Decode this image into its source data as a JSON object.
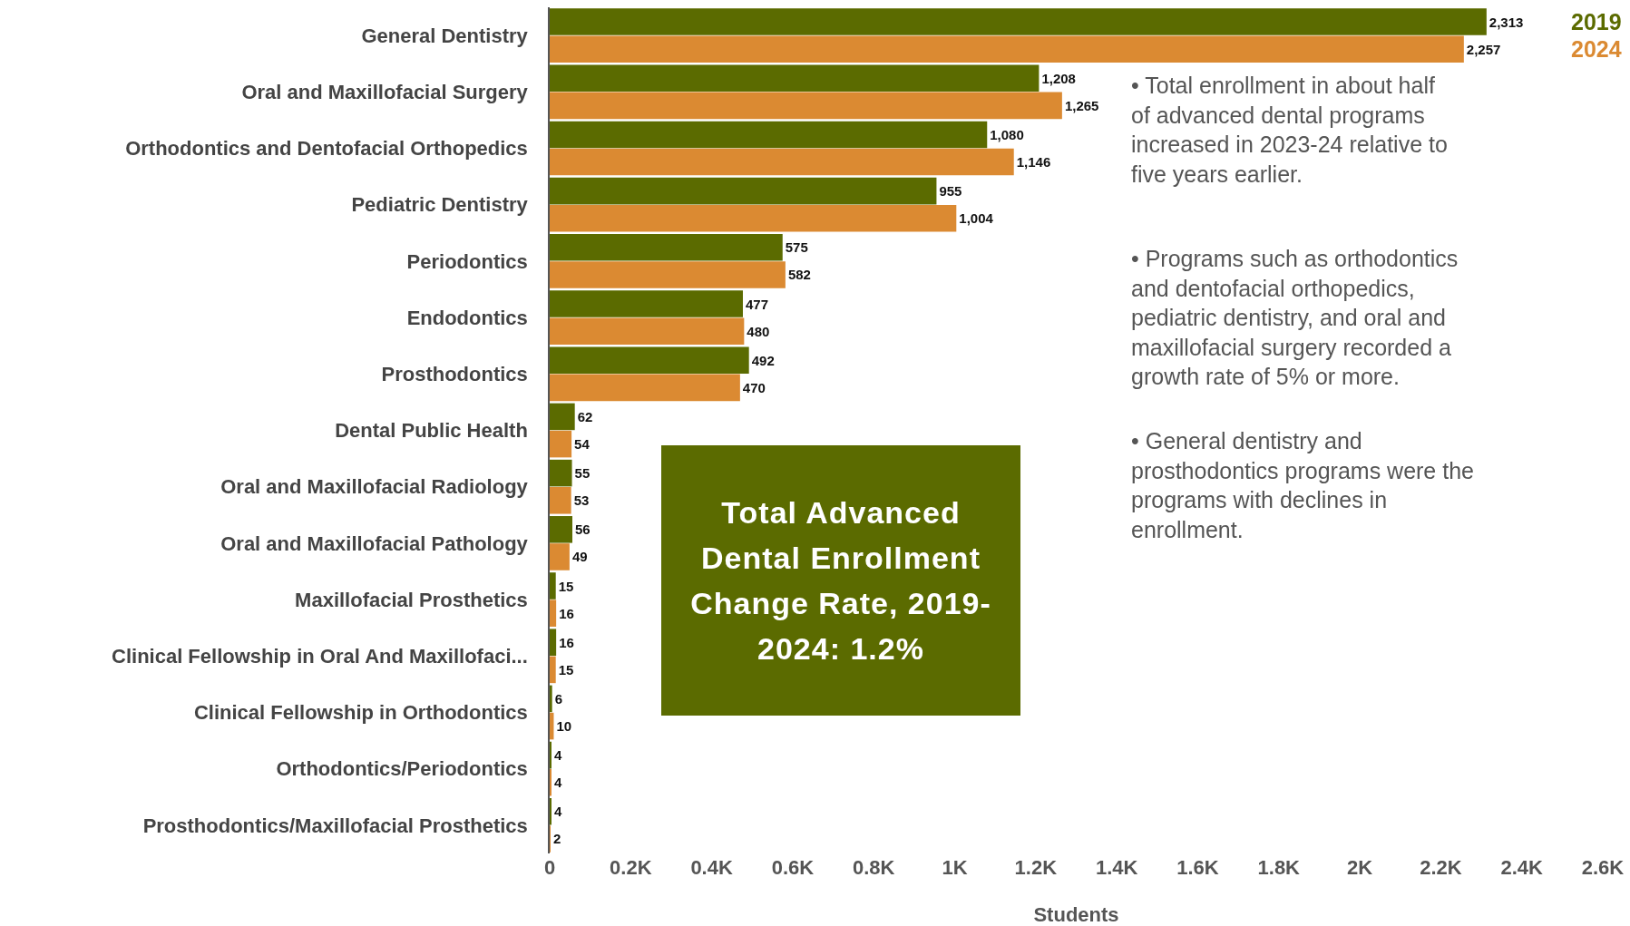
{
  "chart_data": {
    "type": "bar",
    "orientation": "horizontal",
    "xlabel": "Students",
    "categories": [
      "General Dentistry",
      "Oral and Maxillofacial Surgery",
      "Orthodontics and Dentofacial Orthopedics",
      "Pediatric Dentistry",
      "Periodontics",
      "Endodontics",
      "Prosthodontics",
      "Dental Public Health",
      "Oral and Maxillofacial Radiology",
      "Oral and Maxillofacial Pathology",
      "Maxillofacial Prosthetics",
      "Clinical Fellowship in Oral And Maxillofaci...",
      "Clinical Fellowship in Orthodontics",
      "Orthodontics/Periodontics",
      "Prosthodontics/Maxillofacial Prosthetics"
    ],
    "series": [
      {
        "name": "2019",
        "color": "#5b6b00",
        "values": [
          2313,
          1208,
          1080,
          955,
          575,
          477,
          492,
          62,
          55,
          56,
          15,
          16,
          6,
          4,
          4
        ],
        "value_labels": [
          "2,313",
          "1,208",
          "1,080",
          "955",
          "575",
          "477",
          "492",
          "62",
          "55",
          "56",
          "15",
          "16",
          "6",
          "4",
          "4"
        ]
      },
      {
        "name": "2024",
        "color": "#db8a32",
        "values": [
          2257,
          1265,
          1146,
          1004,
          582,
          480,
          470,
          54,
          53,
          49,
          16,
          15,
          10,
          4,
          2
        ],
        "value_labels": [
          "2,257",
          "1,265",
          "1,146",
          "1,004",
          "582",
          "480",
          "470",
          "54",
          "53",
          "49",
          "16",
          "15",
          "10",
          "4",
          "2"
        ]
      }
    ],
    "xlim": [
      0,
      2600
    ],
    "xticks": [
      0,
      {
        "value": 200,
        "label": "0.2K"
      },
      {
        "value": 400,
        "label": "0.4K"
      },
      {
        "value": 600,
        "label": "0.6K"
      },
      {
        "value": 800,
        "label": "0.8K"
      },
      {
        "value": 1000,
        "label": "1K"
      },
      {
        "value": 1200,
        "label": "1.2K"
      },
      {
        "value": 1400,
        "label": "1.4K"
      },
      {
        "value": 1600,
        "label": "1.6K"
      },
      {
        "value": 1800,
        "label": "1.8K"
      },
      {
        "value": 2000,
        "label": "2K"
      },
      {
        "value": 2200,
        "label": "2.2K"
      },
      {
        "value": 2400,
        "label": "2.4K"
      },
      {
        "value": 2600,
        "label": "2.6K"
      }
    ],
    "grid": false,
    "legend": "top right",
    "annotations": [
      "Total Advanced Dental Enrollment Change Rate, 2019-2024: 1.2%",
      "• Total enrollment in about half of advanced dental programs increased in 2023-24 relative to five years earlier.",
      "• Programs such as orthodontics and dentofacial orthopedics, pediatric dentistry, and oral and maxillofacial surgery recorded a growth rate of 5% or more.",
      "• General dentistry and prosthodontics programs were the programs with declines in enrollment."
    ]
  }
}
